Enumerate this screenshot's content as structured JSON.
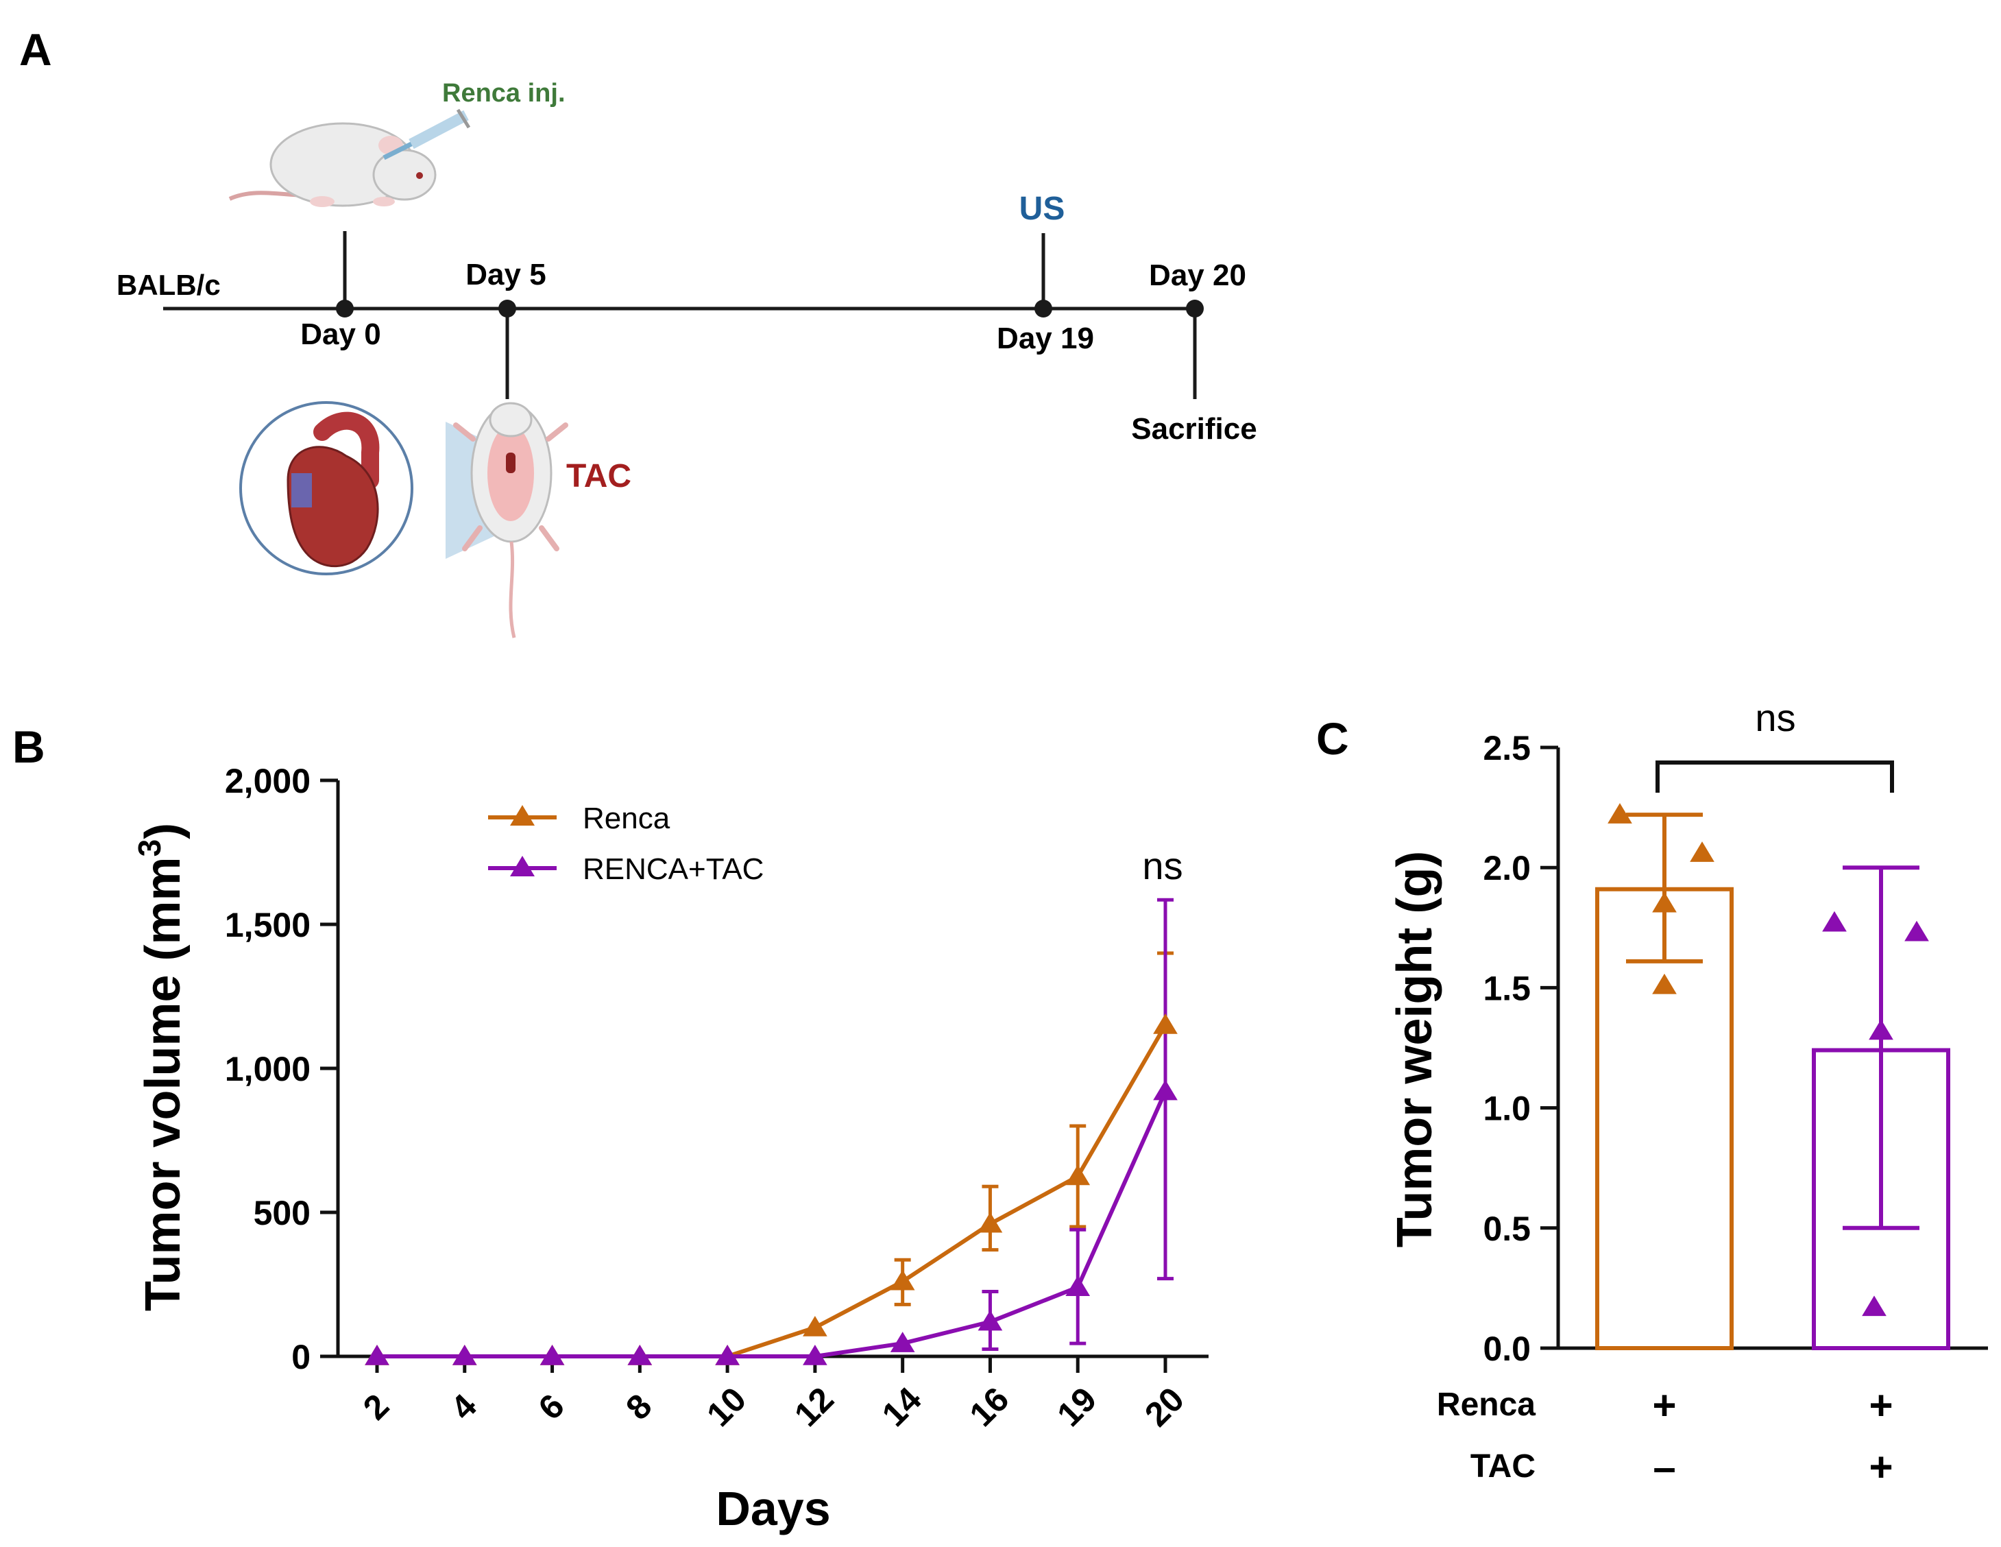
{
  "panel_labels": {
    "a": "A",
    "b": "B",
    "c": "C"
  },
  "timeline": {
    "strain": "BALB/c",
    "injection": "Renca inj.",
    "day0": "Day 0",
    "day5": "Day 5",
    "day19": "Day 19",
    "day20": "Day 20",
    "us": "US",
    "tac": "TAC",
    "sacrifice": "Sacrifice"
  },
  "colors": {
    "renca": "#C8690E",
    "tac": "#8A0DB0",
    "us": "#1F5F99",
    "tac_label": "#A31F1F",
    "inj": "#3F7A3A"
  },
  "chart_data": [
    {
      "type": "line",
      "xlabel": "Days",
      "ylabel": "Tumor volume (mm",
      "ylabel_sup": "3",
      "ylabel_close": ")",
      "categories": [
        "2",
        "4",
        "6",
        "8",
        "10",
        "12",
        "14",
        "16",
        "19",
        "20"
      ],
      "yticks": [
        "0",
        "500",
        "1,000",
        "1,500",
        "2,000"
      ],
      "ylim": [
        0,
        2000
      ],
      "annotation": "ns",
      "series": [
        {
          "name": "Renca",
          "values": [
            0,
            0,
            0,
            0,
            0,
            100,
            260,
            460,
            625,
            1150
          ],
          "err_low": [
            0,
            0,
            0,
            0,
            0,
            0,
            80,
            90,
            175,
            0
          ],
          "err_high": [
            0,
            0,
            0,
            0,
            0,
            0,
            75,
            130,
            175,
            250
          ]
        },
        {
          "name": "RENCA+TAC",
          "values": [
            0,
            0,
            0,
            0,
            0,
            0,
            45,
            120,
            240,
            920
          ],
          "err_low": [
            0,
            0,
            0,
            0,
            0,
            0,
            0,
            95,
            195,
            650
          ],
          "err_high": [
            0,
            0,
            0,
            0,
            0,
            0,
            0,
            105,
            200,
            665
          ]
        }
      ]
    },
    {
      "type": "bar",
      "ylabel": "Tumor weight (g)",
      "yticks": [
        "0.0",
        "0.5",
        "1.0",
        "1.5",
        "2.0",
        "2.5"
      ],
      "ylim": [
        0,
        2.5
      ],
      "annotation": "ns",
      "rows": [
        {
          "label": "Renca",
          "values": [
            "+",
            "+"
          ]
        },
        {
          "label": "TAC",
          "values": [
            "–",
            "+"
          ]
        }
      ],
      "bars": [
        {
          "name": "Renca",
          "value": 1.91,
          "err_low": 1.61,
          "err_high": 2.22,
          "points": [
            2.22,
            2.06,
            1.85,
            1.51
          ]
        },
        {
          "name": "Renca+TAC",
          "value": 1.24,
          "err_low": 0.5,
          "err_high": 2.0,
          "points": [
            1.77,
            1.73,
            1.32,
            0.17
          ]
        }
      ]
    }
  ]
}
